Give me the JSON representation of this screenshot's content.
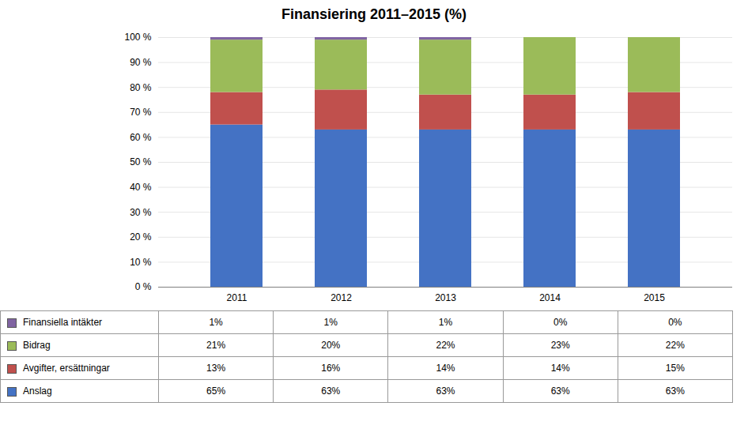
{
  "chart_data": {
    "type": "bar",
    "stacked": true,
    "title": "Finansiering  2011–2015 (%)",
    "categories": [
      "2011",
      "2012",
      "2013",
      "2014",
      "2015"
    ],
    "series": [
      {
        "name": "Anslag",
        "color": "#4472C4",
        "values": [
          65,
          63,
          63,
          63,
          63
        ],
        "value_labels": [
          "65%",
          "63%",
          "63%",
          "63%",
          "63%"
        ]
      },
      {
        "name": "Avgifter, ersättningar",
        "color": "#C0504D",
        "values": [
          13,
          16,
          14,
          14,
          15
        ],
        "value_labels": [
          "13%",
          "16%",
          "14%",
          "14%",
          "15%"
        ]
      },
      {
        "name": "Bidrag",
        "color": "#9BBB59",
        "values": [
          21,
          20,
          22,
          23,
          22
        ],
        "value_labels": [
          "21%",
          "20%",
          "22%",
          "23%",
          "22%"
        ]
      },
      {
        "name": "Finansiella intäkter",
        "color": "#8064A2",
        "values": [
          1,
          1,
          1,
          0,
          0
        ],
        "value_labels": [
          "1%",
          "1%",
          "1%",
          "0%",
          "0%"
        ]
      }
    ],
    "ylim": [
      0,
      100
    ],
    "yticks": [
      {
        "value": 0,
        "label": "0 %"
      },
      {
        "value": 10,
        "label": "10 %"
      },
      {
        "value": 20,
        "label": "20 %"
      },
      {
        "value": 30,
        "label": "30 %"
      },
      {
        "value": 40,
        "label": "40 %"
      },
      {
        "value": 50,
        "label": "50 %"
      },
      {
        "value": 60,
        "label": "60 %"
      },
      {
        "value": 70,
        "label": "70 %"
      },
      {
        "value": 80,
        "label": "80 %"
      },
      {
        "value": 90,
        "label": "90 %"
      },
      {
        "value": 100,
        "label": "100 %"
      }
    ],
    "grid": true
  }
}
